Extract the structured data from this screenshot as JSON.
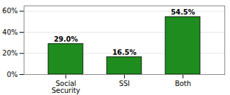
{
  "chart_data": {
    "type": "bar",
    "categories": [
      "Social\nSecurity",
      "SSI",
      "Both"
    ],
    "values": [
      29.0,
      16.5,
      54.5
    ],
    "value_labels": [
      "29.0%",
      "16.5%",
      "54.5%"
    ],
    "data_labels": true,
    "color": "#1e8c1e",
    "ylim": [
      0,
      65
    ],
    "yticks": [
      {
        "value": 0,
        "label": "0%"
      },
      {
        "value": 20,
        "label": "20%"
      },
      {
        "value": 40,
        "label": "40%"
      },
      {
        "value": 60,
        "label": "60%"
      }
    ],
    "grid": true
  }
}
